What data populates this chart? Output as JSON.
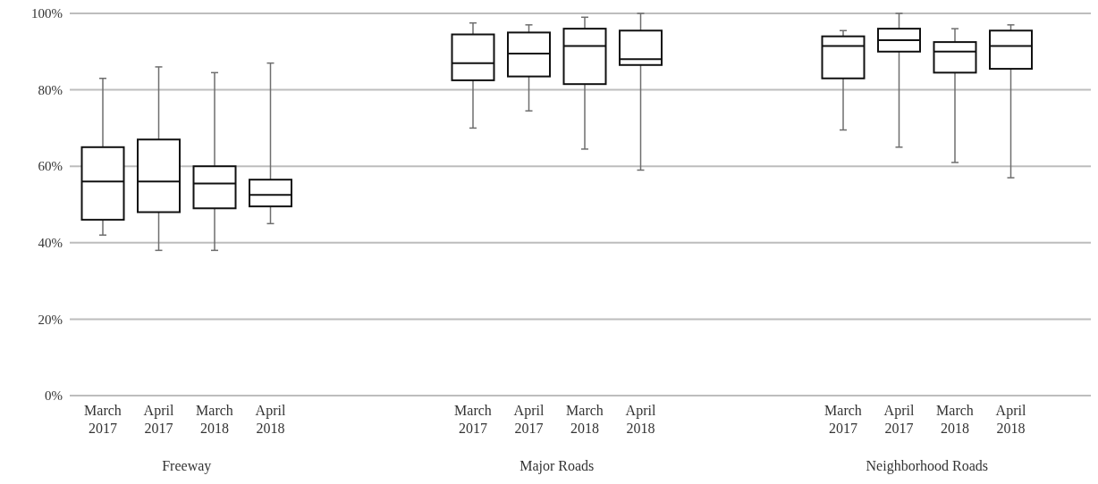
{
  "chart_data": [
    {
      "type": "box",
      "xlabel": "Freeway",
      "categories": [
        "March 2017",
        "April 2017",
        "March 2018",
        "April 2018"
      ],
      "ylim": [
        0,
        100
      ],
      "yticks": [
        {
          "value": 0,
          "label": "0%"
        },
        {
          "value": 20,
          "label": "20%"
        },
        {
          "value": 40,
          "label": "40%"
        },
        {
          "value": 60,
          "label": "60%"
        },
        {
          "value": 80,
          "label": "80%"
        },
        {
          "value": 100,
          "label": "100%"
        }
      ],
      "grid": "y",
      "boxes": [
        {
          "low": 42,
          "q1": 46,
          "median": 56,
          "q3": 65,
          "high": 83
        },
        {
          "low": 38,
          "q1": 48,
          "median": 56,
          "q3": 67,
          "high": 86
        },
        {
          "low": 38,
          "q1": 49,
          "median": 55.5,
          "q3": 60,
          "high": 84.5
        },
        {
          "low": 45,
          "q1": 49.5,
          "median": 52.5,
          "q3": 56.5,
          "high": 87
        }
      ]
    },
    {
      "type": "box",
      "xlabel": "Major Roads",
      "categories": [
        "March 2017",
        "April 2017",
        "March 2018",
        "April 2018"
      ],
      "ylim": [
        0,
        100
      ],
      "yticks": [
        {
          "value": 0,
          "label": null
        },
        {
          "value": 20,
          "label": null
        },
        {
          "value": 40,
          "label": null
        },
        {
          "value": 60,
          "label": null
        },
        {
          "value": 80,
          "label": null
        },
        {
          "value": 100,
          "label": null
        }
      ],
      "grid": "y",
      "tick_labels": "x",
      "boxes": [
        {
          "low": 70,
          "q1": 82.5,
          "median": 87,
          "q3": 94.5,
          "high": 97.5
        },
        {
          "low": 74.5,
          "q1": 83.5,
          "median": 89.5,
          "q3": 95,
          "high": 97
        },
        {
          "low": 64.5,
          "q1": 81.5,
          "median": 91.5,
          "q3": 96,
          "high": 99
        },
        {
          "low": 59,
          "q1": 86.5,
          "median": 88,
          "q3": 95.5,
          "high": 100
        }
      ]
    },
    {
      "type": "box",
      "xlabel": "Neighborhood Roads",
      "categories": [
        "March 2017",
        "April 2017",
        "March 2018",
        "April 2018"
      ],
      "ylim": [
        0,
        100
      ],
      "yticks": [
        {
          "value": 0,
          "label": null
        },
        {
          "value": 20,
          "label": null
        },
        {
          "value": 40,
          "label": null
        },
        {
          "value": 60,
          "label": null
        },
        {
          "value": 80,
          "label": null
        },
        {
          "value": 100,
          "label": null
        }
      ],
      "grid": "y",
      "tick_labels": "x",
      "boxes": [
        {
          "low": 69.5,
          "q1": 83,
          "median": 91.5,
          "q3": 94,
          "high": 95.5
        },
        {
          "low": 65,
          "q1": 90,
          "median": 93,
          "q3": 96,
          "high": 100
        },
        {
          "low": 61,
          "q1": 84.5,
          "median": 90,
          "q3": 92.5,
          "high": 96
        },
        {
          "low": 57,
          "q1": 85.5,
          "median": 91.5,
          "q3": 95.5,
          "high": 97
        }
      ]
    }
  ]
}
